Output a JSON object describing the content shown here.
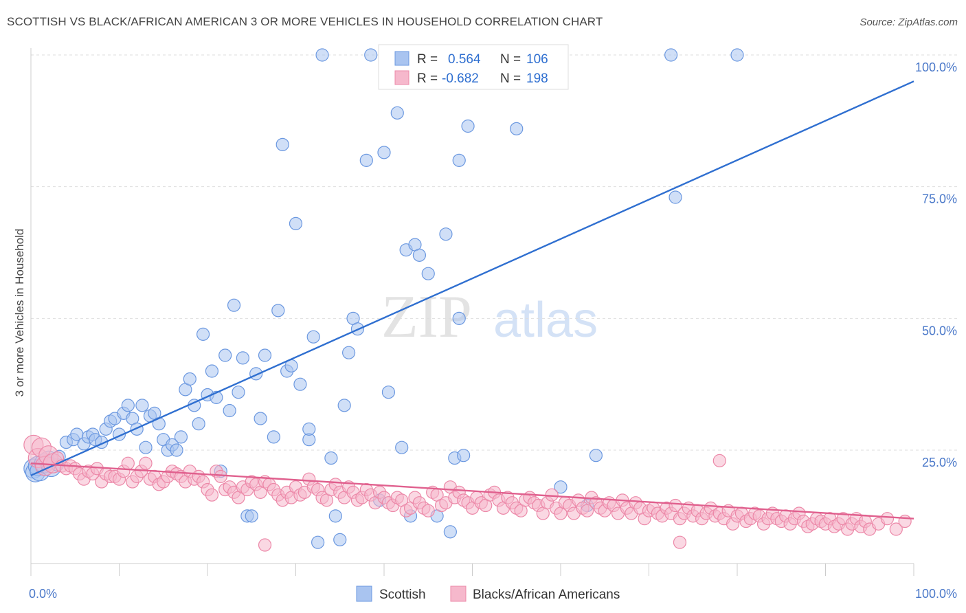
{
  "title": "SCOTTISH VS BLACK/AFRICAN AMERICAN 3 OR MORE VEHICLES IN HOUSEHOLD CORRELATION CHART",
  "source": "Source: ZipAtlas.com",
  "watermark": {
    "zip": "ZIP",
    "atlas": "atlas"
  },
  "legend": {
    "rows": [
      {
        "r_label": "R =",
        "r_value": "0.564",
        "n_label": "N =",
        "n_value": "106",
        "color": "#a9c4f0",
        "stroke": "#6b98e0"
      },
      {
        "r_label": "R =",
        "r_value": "-0.682",
        "n_label": "N =",
        "n_value": "198",
        "color": "#f6b8cc",
        "stroke": "#ec88a8"
      }
    ],
    "bottom": [
      "Scottish",
      "Blacks/African Americans"
    ]
  },
  "chart_data": {
    "type": "scatter",
    "xlabel": "",
    "ylabel": "3 or more Vehicles in Household",
    "xlim": [
      0,
      100
    ],
    "ylim": [
      0,
      105
    ],
    "x_tick_labels": [
      "0.0%",
      "100.0%"
    ],
    "y_tick_labels": [
      "100.0%",
      "75.0%",
      "50.0%",
      "25.0%"
    ],
    "y_ticks": [
      100,
      75,
      50,
      25
    ],
    "grid": "horizontal dashed",
    "legend_position": "top-center",
    "series": [
      {
        "name": "Scottish",
        "color": "#6b98e0",
        "fill": "#a9c4f0",
        "trend": {
          "x": [
            0,
            100
          ],
          "y": [
            20.2,
            95
          ]
        },
        "trend_color": "#2f6fd0",
        "points": [
          [
            0.3,
            21.5
          ],
          [
            0.5,
            20.8
          ],
          [
            0.8,
            22
          ],
          [
            1,
            21
          ],
          [
            1.5,
            22.5
          ],
          [
            2,
            23
          ],
          [
            2.3,
            21.8
          ],
          [
            3,
            22.2
          ],
          [
            3.2,
            23.8
          ],
          [
            4,
            26.5
          ],
          [
            4.8,
            27
          ],
          [
            5.2,
            28
          ],
          [
            6,
            26.2
          ],
          [
            6.5,
            27.5
          ],
          [
            7,
            28
          ],
          [
            7.3,
            27
          ],
          [
            8,
            26.5
          ],
          [
            8.5,
            29
          ],
          [
            9,
            30.5
          ],
          [
            9.5,
            31
          ],
          [
            10,
            28
          ],
          [
            10.5,
            32
          ],
          [
            11,
            33.5
          ],
          [
            11.5,
            31
          ],
          [
            12,
            29
          ],
          [
            12.6,
            33.5
          ],
          [
            13,
            25.5
          ],
          [
            13.5,
            31.5
          ],
          [
            14,
            32
          ],
          [
            14.5,
            30
          ],
          [
            15,
            27
          ],
          [
            15.5,
            25
          ],
          [
            16,
            26
          ],
          [
            16.5,
            25
          ],
          [
            17,
            27.5
          ],
          [
            17.5,
            36.5
          ],
          [
            18,
            38.5
          ],
          [
            18.5,
            33.5
          ],
          [
            19,
            30
          ],
          [
            19.5,
            47
          ],
          [
            20,
            35.5
          ],
          [
            20.5,
            40
          ],
          [
            21,
            35
          ],
          [
            21.5,
            21
          ],
          [
            22,
            43
          ],
          [
            22.5,
            32.5
          ],
          [
            23,
            52.5
          ],
          [
            23.5,
            36
          ],
          [
            24,
            42.5
          ],
          [
            24.5,
            12.5
          ],
          [
            25,
            12.5
          ],
          [
            25.5,
            39.5
          ],
          [
            26,
            31
          ],
          [
            26.5,
            43
          ],
          [
            27.5,
            27.5
          ],
          [
            28,
            51.5
          ],
          [
            28.5,
            83
          ],
          [
            29,
            40
          ],
          [
            29.5,
            41
          ],
          [
            30,
            68
          ],
          [
            30.5,
            37.5
          ],
          [
            31.5,
            27
          ],
          [
            31.5,
            29
          ],
          [
            32,
            46.5
          ],
          [
            32.5,
            7.5
          ],
          [
            33,
            100
          ],
          [
            34,
            23.5
          ],
          [
            34.5,
            12.5
          ],
          [
            35,
            8
          ],
          [
            35.5,
            33.5
          ],
          [
            36,
            43.5
          ],
          [
            36.5,
            50
          ],
          [
            37,
            48
          ],
          [
            38,
            80
          ],
          [
            38.5,
            100
          ],
          [
            39.5,
            15.5
          ],
          [
            40,
            81.5
          ],
          [
            40.5,
            36
          ],
          [
            41,
            100
          ],
          [
            41.5,
            89
          ],
          [
            42,
            25.5
          ],
          [
            42.5,
            63
          ],
          [
            43,
            12.5
          ],
          [
            43.5,
            64
          ],
          [
            44,
            62
          ],
          [
            45,
            58.5
          ],
          [
            46,
            12.5
          ],
          [
            47,
            66
          ],
          [
            47.5,
            9.5
          ],
          [
            48.5,
            80
          ],
          [
            48,
            23.5
          ],
          [
            48.5,
            50
          ],
          [
            49,
            24
          ],
          [
            49.5,
            86.5
          ],
          [
            50,
            100
          ],
          [
            51,
            100
          ],
          [
            55,
            86
          ],
          [
            57,
            100
          ],
          [
            57.5,
            100
          ],
          [
            58.5,
            100
          ],
          [
            60,
            18
          ],
          [
            63,
            14.5
          ],
          [
            64,
            24
          ],
          [
            73,
            73
          ],
          [
            72.5,
            100
          ],
          [
            80,
            100
          ]
        ]
      },
      {
        "name": "Blacks/African Americans",
        "color": "#ec88a8",
        "fill": "#f6b8cc",
        "trend": {
          "x": [
            0,
            100
          ],
          "y": [
            22.5,
            12
          ]
        },
        "trend_color": "#e0608e",
        "points": [
          [
            0.3,
            26
          ],
          [
            0.8,
            23.5
          ],
          [
            1.2,
            25.5
          ],
          [
            1.6,
            22
          ],
          [
            2,
            24
          ],
          [
            2.5,
            22.5
          ],
          [
            3,
            23.5
          ],
          [
            3.5,
            22
          ],
          [
            4,
            21.5
          ],
          [
            4.5,
            22
          ],
          [
            5,
            21.5
          ],
          [
            5.5,
            20.5
          ],
          [
            6,
            19.5
          ],
          [
            6.5,
            21
          ],
          [
            7,
            20.5
          ],
          [
            7.5,
            21.5
          ],
          [
            8,
            19
          ],
          [
            8.5,
            20.5
          ],
          [
            9,
            20
          ],
          [
            9.5,
            20
          ],
          [
            10,
            19.5
          ],
          [
            10.5,
            21
          ],
          [
            11,
            22.5
          ],
          [
            11.5,
            19
          ],
          [
            12,
            20
          ],
          [
            12.5,
            21
          ],
          [
            13,
            22.5
          ],
          [
            13.5,
            19.5
          ],
          [
            14,
            20
          ],
          [
            14.5,
            18.5
          ],
          [
            15,
            19
          ],
          [
            15.5,
            20
          ],
          [
            16,
            21
          ],
          [
            16.5,
            20.5
          ],
          [
            17,
            20
          ],
          [
            17.5,
            19
          ],
          [
            18,
            21
          ],
          [
            18.5,
            19.5
          ],
          [
            19,
            20
          ],
          [
            19.5,
            19
          ],
          [
            20,
            17.5
          ],
          [
            20.5,
            16.5
          ],
          [
            21,
            21
          ],
          [
            21.5,
            20
          ],
          [
            22,
            17.5
          ],
          [
            22.5,
            18
          ],
          [
            23,
            17
          ],
          [
            23.5,
            16
          ],
          [
            24,
            18
          ],
          [
            24.5,
            17.5
          ],
          [
            25,
            19
          ],
          [
            25.5,
            18.5
          ],
          [
            26,
            17
          ],
          [
            26.5,
            19
          ],
          [
            27,
            18.5
          ],
          [
            27.5,
            17.5
          ],
          [
            28,
            16.5
          ],
          [
            28.5,
            15.5
          ],
          [
            29,
            17
          ],
          [
            29.5,
            16
          ],
          [
            30,
            18
          ],
          [
            30.5,
            16.5
          ],
          [
            31,
            17
          ],
          [
            31.5,
            19.5
          ],
          [
            32,
            18
          ],
          [
            32.5,
            17.5
          ],
          [
            33,
            16
          ],
          [
            33.5,
            15.5
          ],
          [
            34,
            17.5
          ],
          [
            34.5,
            18.5
          ],
          [
            35,
            17
          ],
          [
            35.5,
            16
          ],
          [
            36,
            18
          ],
          [
            36.5,
            17
          ],
          [
            37,
            15.5
          ],
          [
            37.5,
            16
          ],
          [
            38,
            17.5
          ],
          [
            38.5,
            16.5
          ],
          [
            39,
            15
          ],
          [
            39.5,
            17
          ],
          [
            40,
            16
          ],
          [
            40.5,
            15
          ],
          [
            41,
            14.5
          ],
          [
            41.5,
            16
          ],
          [
            42,
            15.5
          ],
          [
            42.5,
            13.5
          ],
          [
            43,
            14
          ],
          [
            43.5,
            16
          ],
          [
            44,
            15
          ],
          [
            44.5,
            14
          ],
          [
            45,
            13.5
          ],
          [
            45.5,
            17
          ],
          [
            46,
            16.5
          ],
          [
            46.5,
            14.5
          ],
          [
            47,
            15
          ],
          [
            47.5,
            18
          ],
          [
            48,
            16
          ],
          [
            48.5,
            17
          ],
          [
            49,
            15.5
          ],
          [
            49.5,
            15
          ],
          [
            50,
            14
          ],
          [
            50.5,
            16
          ],
          [
            51,
            15
          ],
          [
            51.5,
            14.5
          ],
          [
            52,
            16.5
          ],
          [
            52.5,
            17
          ],
          [
            53,
            15.5
          ],
          [
            53.5,
            14
          ],
          [
            54,
            16
          ],
          [
            54.5,
            15
          ],
          [
            55,
            14
          ],
          [
            55.5,
            13.5
          ],
          [
            56,
            15.5
          ],
          [
            56.5,
            16
          ],
          [
            57,
            15
          ],
          [
            57.5,
            14.5
          ],
          [
            58,
            13
          ],
          [
            58.5,
            15
          ],
          [
            59,
            16.5
          ],
          [
            59.5,
            14
          ],
          [
            60,
            13
          ],
          [
            60.5,
            15
          ],
          [
            61,
            14.5
          ],
          [
            61.5,
            13
          ],
          [
            62,
            15.5
          ],
          [
            62.5,
            14
          ],
          [
            63,
            13.5
          ],
          [
            63.5,
            16
          ],
          [
            64,
            15
          ],
          [
            64.5,
            14
          ],
          [
            65,
            13.5
          ],
          [
            65.5,
            15
          ],
          [
            66,
            14.5
          ],
          [
            66.5,
            13
          ],
          [
            67,
            15.5
          ],
          [
            67.5,
            14
          ],
          [
            68,
            13
          ],
          [
            68.5,
            15
          ],
          [
            69,
            14
          ],
          [
            69.5,
            12
          ],
          [
            70,
            13.5
          ],
          [
            70.5,
            14
          ],
          [
            71,
            13
          ],
          [
            71.5,
            12.5
          ],
          [
            72,
            14
          ],
          [
            72.5,
            13
          ],
          [
            73,
            14.5
          ],
          [
            73.5,
            12
          ],
          [
            74,
            13
          ],
          [
            74.5,
            14
          ],
          [
            75,
            12.5
          ],
          [
            75.5,
            13.5
          ],
          [
            76,
            12
          ],
          [
            76.5,
            13
          ],
          [
            77,
            14
          ],
          [
            77.5,
            12.5
          ],
          [
            78,
            13
          ],
          [
            78.5,
            12
          ],
          [
            79,
            13.5
          ],
          [
            79.5,
            11
          ],
          [
            80,
            12.5
          ],
          [
            80.5,
            13
          ],
          [
            81,
            11.5
          ],
          [
            81.5,
            12
          ],
          [
            82,
            13
          ],
          [
            82.5,
            12.5
          ],
          [
            83,
            11
          ],
          [
            83.5,
            12
          ],
          [
            84,
            13
          ],
          [
            84.5,
            12
          ],
          [
            85,
            11.5
          ],
          [
            85.5,
            12.5
          ],
          [
            86,
            11
          ],
          [
            86.5,
            12
          ],
          [
            87,
            13
          ],
          [
            87.5,
            11.5
          ],
          [
            88,
            10.5
          ],
          [
            88.5,
            11
          ],
          [
            89,
            12
          ],
          [
            89.5,
            11.5
          ],
          [
            90,
            11
          ],
          [
            90.5,
            12
          ],
          [
            91,
            10.5
          ],
          [
            91.5,
            11
          ],
          [
            92,
            12
          ],
          [
            92.5,
            10
          ],
          [
            93,
            11
          ],
          [
            93.5,
            12
          ],
          [
            94,
            10.5
          ],
          [
            94.5,
            11.5
          ],
          [
            95,
            10
          ],
          [
            96,
            11
          ],
          [
            97,
            12
          ],
          [
            98,
            10
          ],
          [
            99,
            11.5
          ],
          [
            26.5,
            7
          ],
          [
            73.5,
            7.5
          ],
          [
            78,
            23
          ]
        ]
      }
    ]
  }
}
